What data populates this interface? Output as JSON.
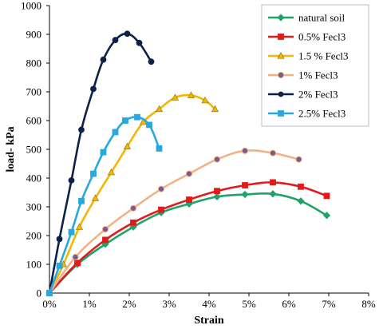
{
  "chart_data": {
    "type": "line",
    "title": "",
    "xlabel": "Strain",
    "ylabel": "load- kPa",
    "xlim": [
      0,
      0.08
    ],
    "ylim": [
      0,
      1000
    ],
    "x_ticks": [
      0,
      0.01,
      0.02,
      0.03,
      0.04,
      0.05,
      0.06,
      0.07,
      0.08
    ],
    "x_tick_labels": [
      "0%",
      "1%",
      "2%",
      "3%",
      "4%",
      "5%",
      "6%",
      "7%",
      "8%"
    ],
    "y_ticks": [
      0,
      100,
      200,
      300,
      400,
      500,
      600,
      700,
      800,
      900,
      1000
    ],
    "y_tick_labels": [
      "0",
      "100",
      "200",
      "300",
      "400",
      "500",
      "600",
      "700",
      "800",
      "900",
      "1000"
    ],
    "grid": false,
    "legend_position": "top-right",
    "series": [
      {
        "name": "natural soil",
        "color": "#1fa36b",
        "marker": "diamond",
        "x": [
          0,
          0.007,
          0.014,
          0.021,
          0.028,
          0.035,
          0.042,
          0.049,
          0.056,
          0.063,
          0.0695
        ],
        "y": [
          0,
          100,
          170,
          230,
          280,
          310,
          335,
          343,
          345,
          320,
          270
        ]
      },
      {
        "name": " 0.5% Fecl3",
        "color": "#e31a1a",
        "marker": "square",
        "x": [
          0,
          0.007,
          0.014,
          0.021,
          0.028,
          0.035,
          0.042,
          0.049,
          0.056,
          0.063,
          0.0695
        ],
        "y": [
          0,
          105,
          185,
          245,
          290,
          325,
          355,
          375,
          385,
          370,
          338
        ]
      },
      {
        "name": "1.5 % Fecl3",
        "color": "#f2b705",
        "marker": "triangle",
        "x": [
          0,
          0.0035,
          0.0075,
          0.0115,
          0.0155,
          0.0195,
          0.0235,
          0.0275,
          0.0315,
          0.0355,
          0.039,
          0.0415
        ],
        "y": [
          0,
          100,
          230,
          330,
          420,
          510,
          595,
          640,
          680,
          688,
          670,
          640
        ]
      },
      {
        "name": "1% Fecl3",
        "color": "#f4b183",
        "marker": "circle",
        "x": [
          0,
          0.0065,
          0.014,
          0.021,
          0.028,
          0.035,
          0.042,
          0.049,
          0.056,
          0.0625
        ],
        "y": [
          0,
          125,
          222,
          295,
          362,
          415,
          465,
          495,
          487,
          465
        ]
      },
      {
        "name": "2% Fecl3",
        "color": "#0d2249",
        "marker": "circle",
        "x": [
          0,
          0.0025,
          0.0055,
          0.008,
          0.011,
          0.0135,
          0.0165,
          0.0195,
          0.0225,
          0.0255
        ],
        "y": [
          0,
          188,
          392,
          568,
          710,
          812,
          880,
          902,
          870,
          805
        ]
      },
      {
        "name": "2.5% Fecl3",
        "color": "#29a8e0",
        "marker": "square",
        "x": [
          0,
          0.0025,
          0.0055,
          0.008,
          0.011,
          0.0135,
          0.0165,
          0.019,
          0.022,
          0.025,
          0.0275
        ],
        "y": [
          0,
          95,
          212,
          320,
          415,
          490,
          560,
          600,
          612,
          585,
          503
        ]
      }
    ]
  }
}
